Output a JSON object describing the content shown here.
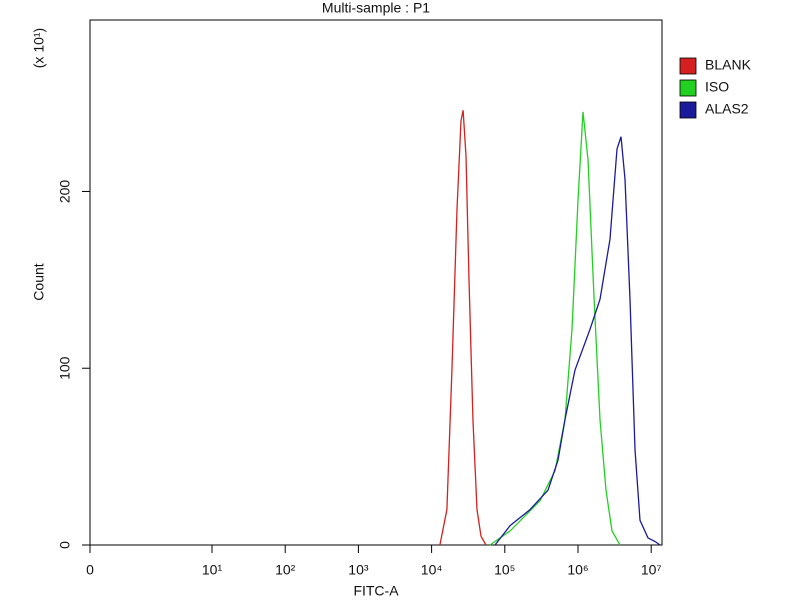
{
  "chart_data": {
    "type": "line",
    "title": "Multi-sample : P1",
    "x_label": "FITC-A",
    "y_label": "Count",
    "y_multiplier": "(x 10¹)",
    "xscale": "biexponential",
    "xlim": [
      0,
      14000000
    ],
    "xticks": [
      0,
      {
        "value": 10,
        "label": "10¹"
      },
      {
        "value": 100,
        "label": "10²"
      },
      {
        "value": 1000,
        "label": "10³"
      },
      {
        "value": 10000,
        "label": "10⁴"
      },
      {
        "value": 100000,
        "label": "10⁵"
      },
      {
        "value": 1000000,
        "label": "10⁶"
      },
      {
        "value": 10000000,
        "label": "10⁷"
      }
    ],
    "ylim": [
      0,
      297
    ],
    "yticks": [
      0,
      100,
      200
    ],
    "legend": "top-right",
    "series": [
      {
        "name": "BLANK",
        "color": "#d42020",
        "x": [
          13000,
          16200,
          19000,
          22200,
          25200,
          26900,
          29500,
          32400,
          36800,
          41700,
          47300,
          55300
        ],
        "values": [
          0,
          20,
          100,
          190,
          240,
          246,
          220,
          150,
          70,
          20,
          5,
          0
        ]
      },
      {
        "name": "ISO",
        "color": "#22d022",
        "x": [
          62800,
          118000,
          303000,
          485000,
          664000,
          828000,
          1000000,
          1170000,
          1370000,
          1660000,
          2000000,
          2410000,
          2910000,
          3750000
        ],
        "values": [
          0,
          8,
          25,
          42,
          71,
          122,
          195,
          245,
          218,
          139,
          71,
          31,
          8,
          0
        ]
      },
      {
        "name": "ALAS2",
        "color": "#1a1a9a",
        "x": [
          73500,
          118000,
          221000,
          389000,
          533000,
          664000,
          910000,
          1460000,
          2000000,
          2740000,
          3410000,
          3870000,
          4380000,
          5130000,
          6010000,
          7030000,
          9040000,
          11300000,
          13200000
        ],
        "values": [
          0,
          11,
          20,
          31,
          48,
          71,
          99,
          122,
          139,
          173,
          224,
          231,
          207,
          139,
          54,
          14,
          4,
          2,
          0
        ]
      }
    ]
  }
}
